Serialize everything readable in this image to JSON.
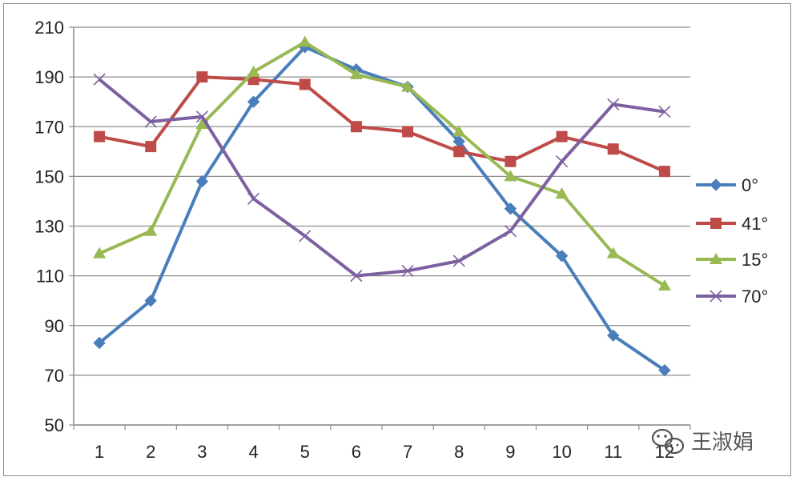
{
  "chart_data": {
    "type": "line",
    "title": "",
    "xlabel": "",
    "ylabel": "",
    "categories": [
      "1",
      "2",
      "3",
      "4",
      "5",
      "6",
      "7",
      "8",
      "9",
      "10",
      "11",
      "12"
    ],
    "ylim": [
      50,
      210
    ],
    "yticks": [
      "50",
      "70",
      "90",
      "110",
      "130",
      "150",
      "170",
      "190",
      "210"
    ],
    "grid": true,
    "legend_position": "right",
    "series": [
      {
        "name": "0°",
        "color": "#4a7ebb",
        "marker": "diamond",
        "values": [
          83,
          100,
          148,
          180,
          202,
          193,
          186,
          164,
          137,
          118,
          86,
          72
        ]
      },
      {
        "name": "41°",
        "color": "#be4b48",
        "marker": "square",
        "values": [
          166,
          162,
          190,
          189,
          187,
          170,
          168,
          160,
          156,
          166,
          161,
          152
        ]
      },
      {
        "name": "15°",
        "color": "#98b954",
        "marker": "triangle",
        "values": [
          119,
          128,
          171,
          192,
          204,
          191,
          186,
          168,
          150,
          143,
          119,
          106
        ]
      },
      {
        "name": "70°",
        "color": "#7d60a0",
        "marker": "x",
        "values": [
          189,
          172,
          174,
          141,
          126,
          110,
          112,
          116,
          128,
          156,
          179,
          176
        ]
      }
    ]
  },
  "watermark": {
    "icon": "wechat-icon",
    "text": "王淑娟"
  }
}
